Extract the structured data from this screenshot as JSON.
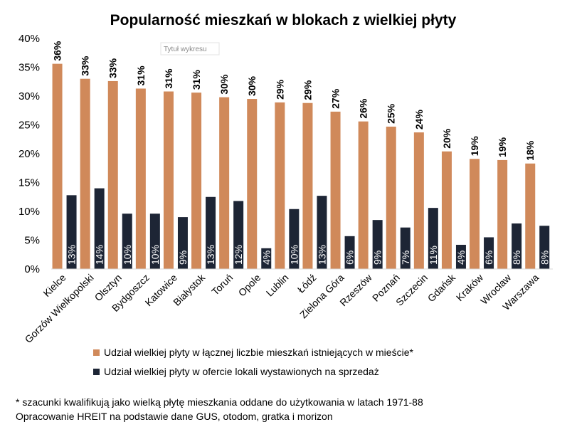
{
  "chart_data": {
    "type": "bar",
    "title": "Popularność mieszkań w blokach z wielkiej płyty",
    "categories": [
      "Kielce",
      "Gorzów Wielkopolski",
      "Olsztyn",
      "Bydgoszcz",
      "Katowice",
      "Białystok",
      "Toruń",
      "Opole",
      "Lublin",
      "Łódź",
      "Zielona Góra",
      "Rzeszów",
      "Poznań",
      "Szczecin",
      "Gdańsk",
      "Kraków",
      "Wrocław",
      "Warszawa"
    ],
    "series": [
      {
        "name": "Udział wielkiej płyty w łącznej liczbie mieszkań istniejących w mieście*",
        "color": "#d0895a",
        "values": [
          35.6,
          33.0,
          32.6,
          31.3,
          30.8,
          30.6,
          29.8,
          29.5,
          28.9,
          28.8,
          27.3,
          25.6,
          24.7,
          23.7,
          20.4,
          19.1,
          18.9,
          18.3
        ],
        "labels": [
          "36%",
          "33%",
          "33%",
          "31%",
          "31%",
          "31%",
          "30%",
          "30%",
          "29%",
          "29%",
          "27%",
          "26%",
          "25%",
          "24%",
          "20%",
          "19%",
          "19%",
          "18%"
        ]
      },
      {
        "name": "Udział wielkiej płyty w ofercie lokali wystawionych na sprzedaż",
        "color": "#1d2535",
        "values": [
          12.8,
          14.0,
          9.6,
          9.6,
          9.0,
          12.5,
          11.8,
          3.6,
          10.4,
          12.7,
          5.7,
          8.5,
          7.2,
          10.6,
          4.2,
          5.5,
          7.9,
          7.5
        ],
        "labels": [
          "13%",
          "14%",
          "10%",
          "10%",
          "9%",
          "13%",
          "12%",
          "4%",
          "10%",
          "13%",
          "6%",
          "9%",
          "7%",
          "11%",
          "4%",
          "6%",
          "8%",
          "8%"
        ]
      }
    ],
    "yticks": [
      "0%",
      "5%",
      "10%",
      "15%",
      "20%",
      "25%",
      "30%",
      "35%",
      "40%"
    ],
    "ylim": [
      0,
      40
    ],
    "grid": false,
    "legend_position": "bottom",
    "tooltip": "Tytuł wykresu"
  },
  "notes": [
    "* szacunki kwalifikują jako wielką płytę mieszkania oddane do użytkowania w latach 1971-88",
    "Opracowanie HREIT na podstawie dane GUS, otodom, gratka i morizon"
  ]
}
